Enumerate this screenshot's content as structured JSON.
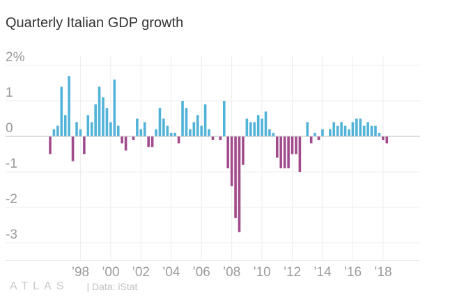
{
  "colors": {
    "positive": "#52b3d9",
    "negative": "#a24b8c",
    "grid": "#ececec",
    "axis": "#bdbdbd"
  },
  "footer": {
    "logo": "ATLAS",
    "source": "| Data: iStat"
  },
  "chart_data": {
    "type": "bar",
    "title": "Quarterly Italian GDP growth",
    "xlabel": "",
    "ylabel": "",
    "ylim": [
      -3.5,
      2.2
    ],
    "grid": true,
    "legend": "none",
    "y_ticks": [
      {
        "value": 2,
        "label": "2%"
      },
      {
        "value": 1,
        "label": "1"
      },
      {
        "value": 0,
        "label": "0"
      },
      {
        "value": -1,
        "label": "-1"
      },
      {
        "value": -2,
        "label": "-2"
      },
      {
        "value": -3,
        "label": "-3"
      }
    ],
    "x_ticks": [
      {
        "year": 1998,
        "label": "’98"
      },
      {
        "year": 2000,
        "label": "’00"
      },
      {
        "year": 2002,
        "label": "’02"
      },
      {
        "year": 2004,
        "label": "’04"
      },
      {
        "year": 2006,
        "label": "’06"
      },
      {
        "year": 2008,
        "label": "’08"
      },
      {
        "year": 2010,
        "label": "’10"
      },
      {
        "year": 2012,
        "label": "’12"
      },
      {
        "year": 2014,
        "label": "’14"
      },
      {
        "year": 2016,
        "label": "’16"
      },
      {
        "year": 2018,
        "label": "’18"
      }
    ],
    "start": {
      "year": 1996,
      "quarter": 1
    },
    "values": [
      -0.5,
      0.2,
      0.3,
      1.4,
      0.6,
      1.7,
      -0.7,
      0.4,
      0.2,
      -0.5,
      0.6,
      0.4,
      0.9,
      1.4,
      1.1,
      0.8,
      0.4,
      1.6,
      0.3,
      -0.2,
      -0.4,
      0.0,
      -0.1,
      0.5,
      0.2,
      0.4,
      -0.3,
      -0.3,
      0.2,
      0.8,
      0.5,
      0.3,
      0.1,
      0.1,
      -0.2,
      1.0,
      0.8,
      0.2,
      0.4,
      0.6,
      0.3,
      0.9,
      0.2,
      -0.1,
      0.0,
      -0.1,
      1.0,
      -0.9,
      -1.4,
      -2.3,
      -2.7,
      -0.8,
      0.5,
      0.4,
      0.4,
      0.6,
      0.5,
      0.7,
      0.2,
      0.1,
      -0.6,
      -0.9,
      -0.9,
      -0.9,
      -0.5,
      -0.5,
      -1.0,
      0.0,
      0.4,
      -0.2,
      0.1,
      -0.1,
      0.2,
      0.0,
      0.2,
      0.4,
      0.3,
      0.4,
      0.3,
      0.2,
      0.4,
      0.5,
      0.5,
      0.3,
      0.4,
      0.3,
      0.3,
      0.1,
      -0.1,
      -0.2
    ]
  }
}
